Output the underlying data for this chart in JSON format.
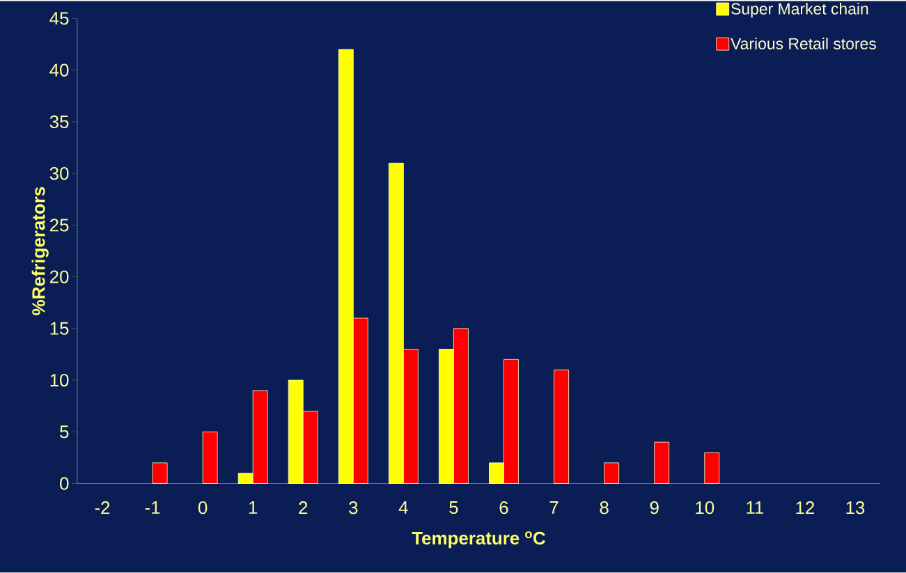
{
  "chart_data": {
    "type": "bar",
    "xlabel": "Temperature $^{o}$C",
    "ylabel": "%Refrigerators",
    "categories": [
      "-2",
      "-1",
      "0",
      "1",
      "2",
      "3",
      "4",
      "5",
      "6",
      "7",
      "8",
      "9",
      "10",
      "11",
      "12",
      "13"
    ],
    "series": [
      {
        "name": "Super Market chain",
        "color": "#ffff00",
        "values": [
          null,
          null,
          null,
          1,
          10,
          42,
          31,
          13,
          2,
          null,
          null,
          null,
          null,
          null,
          null,
          null
        ]
      },
      {
        "name": "Various Retail stores",
        "color": "#ff0000",
        "values": [
          null,
          2,
          5,
          9,
          7,
          16,
          13,
          15,
          12,
          11,
          2,
          4,
          3,
          null,
          null,
          null
        ]
      }
    ],
    "ylim": [
      0,
      45
    ],
    "yticks": [
      0,
      5,
      10,
      15,
      20,
      25,
      30,
      35,
      40,
      45
    ],
    "legend": "top right"
  }
}
